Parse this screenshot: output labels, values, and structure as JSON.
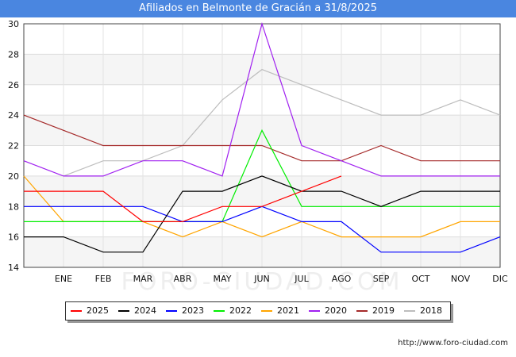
{
  "title": "Afiliados en Belmonte de Gracián a 31/8/2025",
  "watermark": "FORO-CIUDAD.COM",
  "source": "http://www.foro-ciudad.com",
  "chart_data": {
    "type": "line",
    "categories": [
      "",
      "ENE",
      "FEB",
      "MAR",
      "ABR",
      "MAY",
      "JUN",
      "JUL",
      "AGO",
      "SEP",
      "OCT",
      "NOV",
      "DIC"
    ],
    "ylim": [
      14,
      30
    ],
    "yticks": [
      14,
      16,
      18,
      20,
      22,
      24,
      26,
      28,
      30
    ],
    "grid": true,
    "legend_position": "bottom",
    "series": [
      {
        "name": "2025",
        "color": "#ff0000",
        "values": [
          19,
          19,
          19,
          17,
          17,
          18,
          18,
          19,
          20,
          null,
          null,
          null,
          null
        ]
      },
      {
        "name": "2024",
        "color": "#000000",
        "values": [
          16,
          16,
          15,
          15,
          19,
          19,
          20,
          19,
          19,
          18,
          19,
          19,
          19
        ]
      },
      {
        "name": "2023",
        "color": "#0000ff",
        "values": [
          18,
          18,
          18,
          18,
          17,
          17,
          18,
          17,
          17,
          15,
          15,
          15,
          16
        ]
      },
      {
        "name": "2022",
        "color": "#00ee00",
        "values": [
          17,
          17,
          17,
          17,
          17,
          17,
          23,
          18,
          18,
          18,
          18,
          18,
          18
        ]
      },
      {
        "name": "2021",
        "color": "#ffa500",
        "values": [
          20,
          17,
          17,
          17,
          16,
          17,
          16,
          17,
          16,
          16,
          16,
          17,
          17
        ]
      },
      {
        "name": "2020",
        "color": "#a020f0",
        "values": [
          21,
          20,
          20,
          21,
          21,
          20,
          30,
          22,
          21,
          20,
          20,
          20,
          20
        ]
      },
      {
        "name": "2019",
        "color": "#a52a2a",
        "values": [
          24,
          23,
          22,
          22,
          22,
          22,
          22,
          21,
          21,
          22,
          21,
          21,
          21
        ]
      },
      {
        "name": "2018",
        "color": "#bdbdbd",
        "values": [
          null,
          20,
          21,
          21,
          22,
          25,
          27,
          26,
          25,
          24,
          24,
          25,
          24
        ]
      }
    ]
  }
}
